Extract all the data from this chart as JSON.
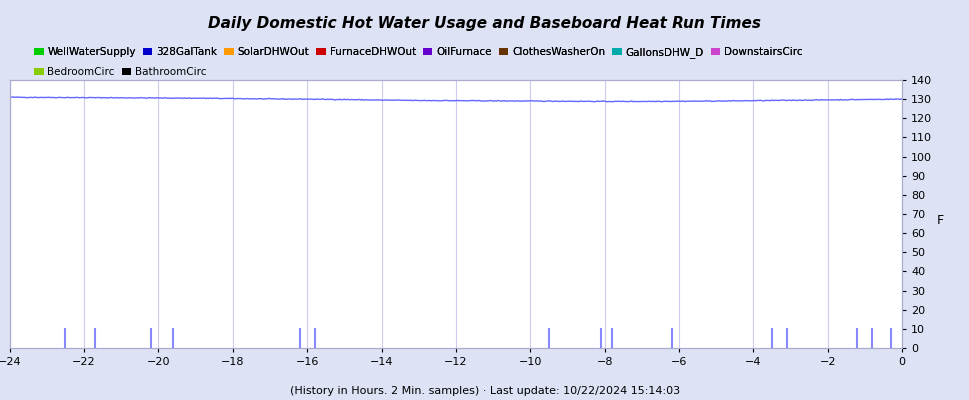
{
  "title": "Daily Domestic Hot Water Usage and Baseboard Heat Run Times",
  "xlabel": "(History in Hours. 2 Min. samples) · Last update: 10/22/2024 15:14:03",
  "ylabel_right": "F",
  "x_min": -24,
  "x_max": 0,
  "y_min": 0,
  "y_max": 140,
  "y_ticks": [
    0,
    10,
    20,
    30,
    40,
    50,
    60,
    70,
    80,
    90,
    100,
    110,
    120,
    130,
    140
  ],
  "x_ticks": [
    -24,
    -22,
    -20,
    -18,
    -16,
    -14,
    -12,
    -10,
    -8,
    -6,
    -4,
    -2,
    0
  ],
  "outer_bg_color": "#dde3f5",
  "plot_bg_color": "#ffffff",
  "grid_color": "#ccccee",
  "legend_items": [
    {
      "label": "WellWaterSupply",
      "color": "#00cc00"
    },
    {
      "label": "328GalTank",
      "color": "#0000cc"
    },
    {
      "label": "SolarDHWOut",
      "color": "#ff9900"
    },
    {
      "label": "FurnaceDHWOut",
      "color": "#cc0000"
    },
    {
      "label": "OilFurnace",
      "color": "#6600cc"
    },
    {
      "label": "ClothesWasherOn",
      "color": "#663300"
    },
    {
      "label": "GallonsDHW_D",
      "color": "#00aaaa"
    },
    {
      "label": "DownstairsCirc",
      "color": "#cc44cc"
    },
    {
      "label": "BedroomCirc",
      "color": "#88cc00"
    },
    {
      "label": "BathroomCirc",
      "color": "#000000"
    }
  ],
  "tank_line_color": "#6666ff",
  "spike_color": "#8888ff",
  "spike_positions": [
    -22.5,
    -21.7,
    -20.2,
    -19.6,
    -16.2,
    -15.8,
    -9.5,
    -8.1,
    -7.8,
    -6.2,
    -3.5,
    -3.1,
    -1.2,
    -0.8,
    -0.3
  ],
  "spike_height": 10,
  "tank_line_data_x": [
    -24,
    -23,
    -22,
    -21,
    -20,
    -19,
    -18,
    -17,
    -16,
    -15,
    -14,
    -13,
    -12,
    -11,
    -10,
    -9,
    -8,
    -7,
    -6,
    -5,
    -4,
    -3,
    -2,
    -1,
    0
  ],
  "tank_line_data_y": [
    131.0,
    130.9,
    130.8,
    130.7,
    130.6,
    130.5,
    130.3,
    130.1,
    130.0,
    129.8,
    129.5,
    129.3,
    129.2,
    129.1,
    129.0,
    128.9,
    128.8,
    128.8,
    128.9,
    129.0,
    129.2,
    129.4,
    129.6,
    129.8,
    130.0
  ]
}
